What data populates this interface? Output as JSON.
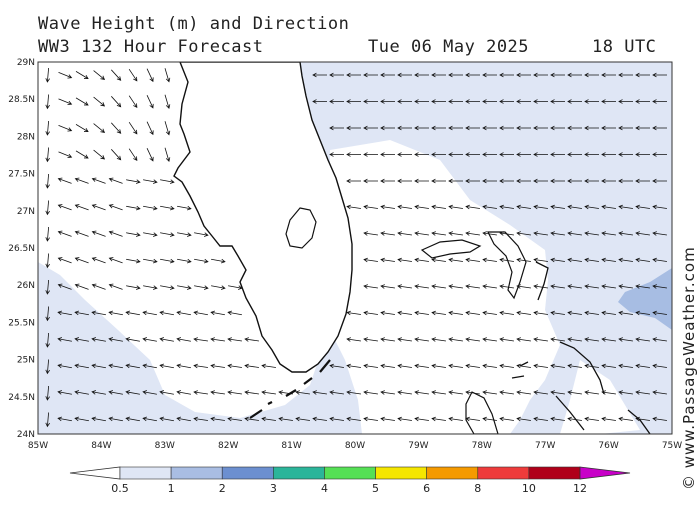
{
  "header": {
    "line1": "Wave Height (m) and Direction",
    "line2_left": "WW3 132 Hour Forecast",
    "date": "Tue 06 May 2025",
    "time": "18 UTC"
  },
  "credit": "© www.PassageWeather.com",
  "axes": {
    "lat_labels": [
      "29N",
      "28.5N",
      "28N",
      "27.5N",
      "27N",
      "26.5N",
      "26N",
      "25.5N",
      "25N",
      "24.5N",
      "24N"
    ],
    "lon_labels": [
      "85W",
      "84W",
      "83W",
      "82W",
      "81W",
      "80W",
      "79W",
      "78W",
      "77W",
      "76W",
      "75W"
    ]
  },
  "legend": {
    "labels": [
      "0.5",
      "1",
      "2",
      "3",
      "4",
      "5",
      "6",
      "8",
      "10",
      "12"
    ],
    "colors": [
      "#dfe6f5",
      "#a9bde3",
      "#6c8fd0",
      "#2bb59a",
      "#55e055",
      "#f5e600",
      "#f59a00",
      "#ee3b3b",
      "#b0001a",
      "#c800c8"
    ]
  },
  "colors": {
    "sea_light": "#dfe6f5",
    "sea_medium": "#a7bde3",
    "land": "#ffffff"
  }
}
